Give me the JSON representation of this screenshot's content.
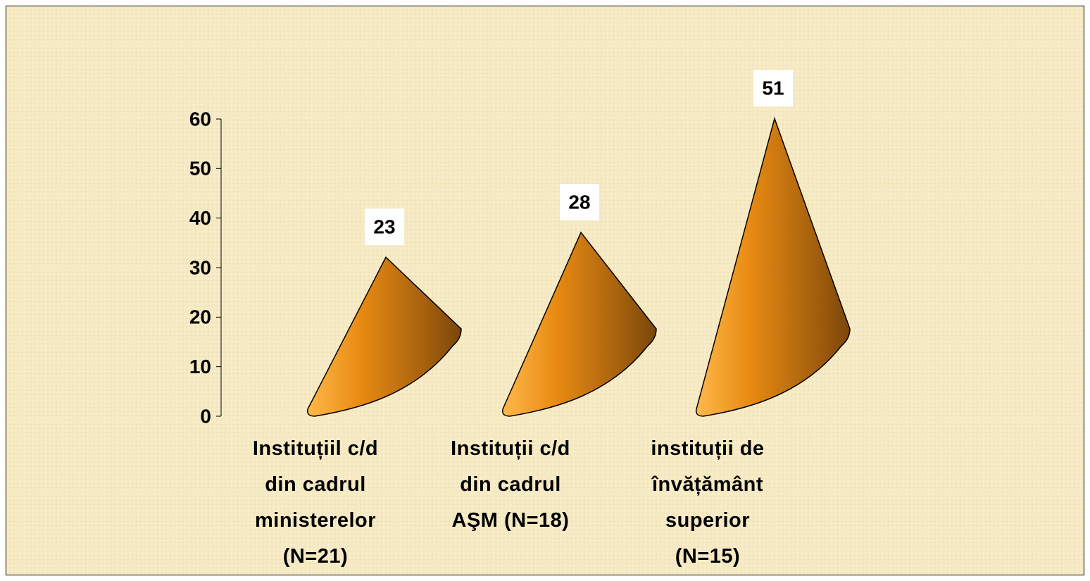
{
  "chart_data": {
    "type": "cone",
    "categories": [
      "Instituțiil c/d\ndin cadrul\nministerelor\n(N=21)",
      "Instituții c/d\ndin cadrul\nAŞM  (N=18)",
      "instituții de\nînvățământ\nsuperior\n(N=15)"
    ],
    "values": [
      23,
      28,
      51
    ],
    "color": "#e88a12",
    "ylim": [
      0,
      60
    ],
    "yticks": [
      0,
      10,
      20,
      30,
      40,
      50,
      60
    ]
  }
}
